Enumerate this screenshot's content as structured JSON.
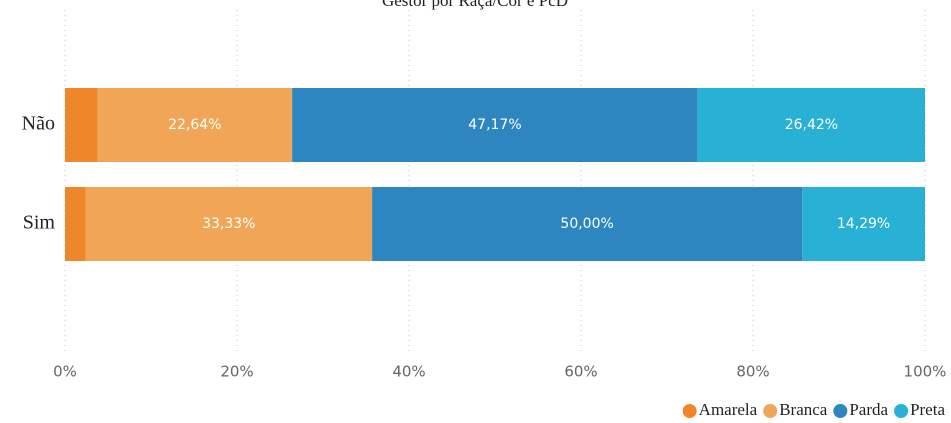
{
  "chart_data": {
    "type": "stacked_barh",
    "title": "Gestor por Raça/Cor e PcD",
    "categories": [
      "Não",
      "Sim"
    ],
    "series": [
      {
        "name": "Amarela",
        "color": "#f0862a",
        "values": [
          3.77,
          2.38
        ],
        "value_labels": [
          null,
          null
        ]
      },
      {
        "name": "Branca",
        "color": "#f0a656",
        "values": [
          22.64,
          33.33
        ],
        "value_labels": [
          "22,64%",
          "33,33%"
        ]
      },
      {
        "name": "Parda",
        "color": "#2e86c1",
        "values": [
          47.17,
          50.0
        ],
        "value_labels": [
          "47,17%",
          "50,00%"
        ]
      },
      {
        "name": "Preta",
        "color": "#29b0d5",
        "values": [
          26.42,
          14.29
        ],
        "value_labels": [
          "26,42%",
          "14,29%"
        ]
      }
    ],
    "xlim": [
      0,
      100
    ],
    "xticks": [
      {
        "value": 0,
        "label": "0%"
      },
      {
        "value": 20,
        "label": "20%"
      },
      {
        "value": 40,
        "label": "40%"
      },
      {
        "value": 60,
        "label": "60%"
      },
      {
        "value": 80,
        "label": "80%"
      },
      {
        "value": 100,
        "label": "100%"
      }
    ],
    "grid": true,
    "legend": "bottom-right"
  }
}
